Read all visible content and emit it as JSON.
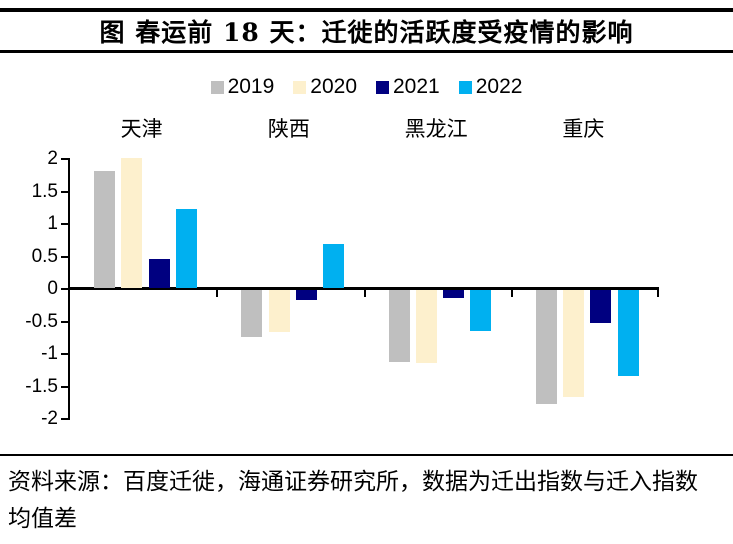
{
  "title": "图 春运前 18 天：迁徙的活跃度受疫情的影响",
  "source_note": "资料来源：百度迁徙，海通证券研究所，数据为迁出指数与迁入指数均值差",
  "colors": {
    "series_2019": "#BFBFBF",
    "series_2020": "#FDF0CD",
    "series_2021": "#000080",
    "series_2022": "#00B0F0",
    "axis": "#000000"
  },
  "chart_data": {
    "type": "bar",
    "categories": [
      "天津",
      "陕西",
      "黑龙江",
      "重庆"
    ],
    "series": [
      {
        "name": "2019",
        "color": "#BFBFBF",
        "values": [
          1.8,
          -0.72,
          -1.1,
          -1.76
        ]
      },
      {
        "name": "2020",
        "color": "#FDF0CD",
        "values": [
          2.0,
          -0.64,
          -1.13,
          -1.64
        ]
      },
      {
        "name": "2021",
        "color": "#000080",
        "values": [
          0.45,
          -0.16,
          -0.13,
          -0.5
        ]
      },
      {
        "name": "2022",
        "color": "#00B0F0",
        "values": [
          1.22,
          0.68,
          -0.63,
          -1.33
        ]
      }
    ],
    "title": "图 春运前 18 天：迁徙的活跃度受疫情的影响",
    "xlabel": "",
    "ylabel": "",
    "ylim": [
      -2,
      2
    ],
    "ytick_step": 0.5,
    "ytick_labels": [
      "2",
      "1.5",
      "1",
      "0.5",
      "0",
      "-0.5",
      "-1",
      "-1.5",
      "-2"
    ],
    "legend_position": "top",
    "grid": false
  }
}
